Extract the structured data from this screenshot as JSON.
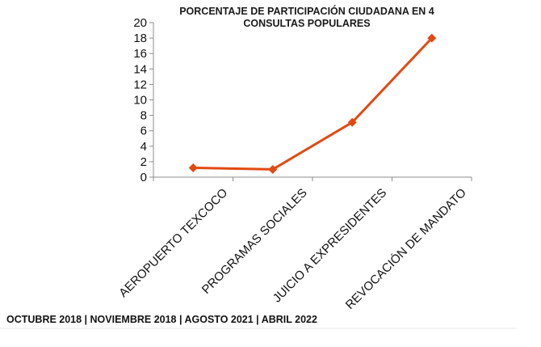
{
  "chart_data": {
    "type": "line",
    "title_lines": [
      "PORCENTAJE DE PARTICIPACIÓN CIUDADANA EN 4",
      "CONSULTAS POPULARES"
    ],
    "categories": [
      "AEROPUERTO TEXCOCO",
      "PROGRAMAS SOCIALES",
      "JUICIO A EXPRESIDENTES",
      "REVOCACIÓN DE MANDATO"
    ],
    "series": [
      {
        "values": [
          1.2,
          1.0,
          7.1,
          18.0
        ],
        "color": "#e24a12"
      }
    ],
    "ylim": [
      0,
      20
    ],
    "yticks": [
      0,
      2,
      4,
      6,
      8,
      10,
      12,
      14,
      16,
      18,
      20
    ],
    "grid": false,
    "marker": "diamond"
  },
  "footer": "OCTUBRE 2018 |  NOVIEMBRE 2018  |  AGOSTO 2021  |  ABRIL 2022"
}
